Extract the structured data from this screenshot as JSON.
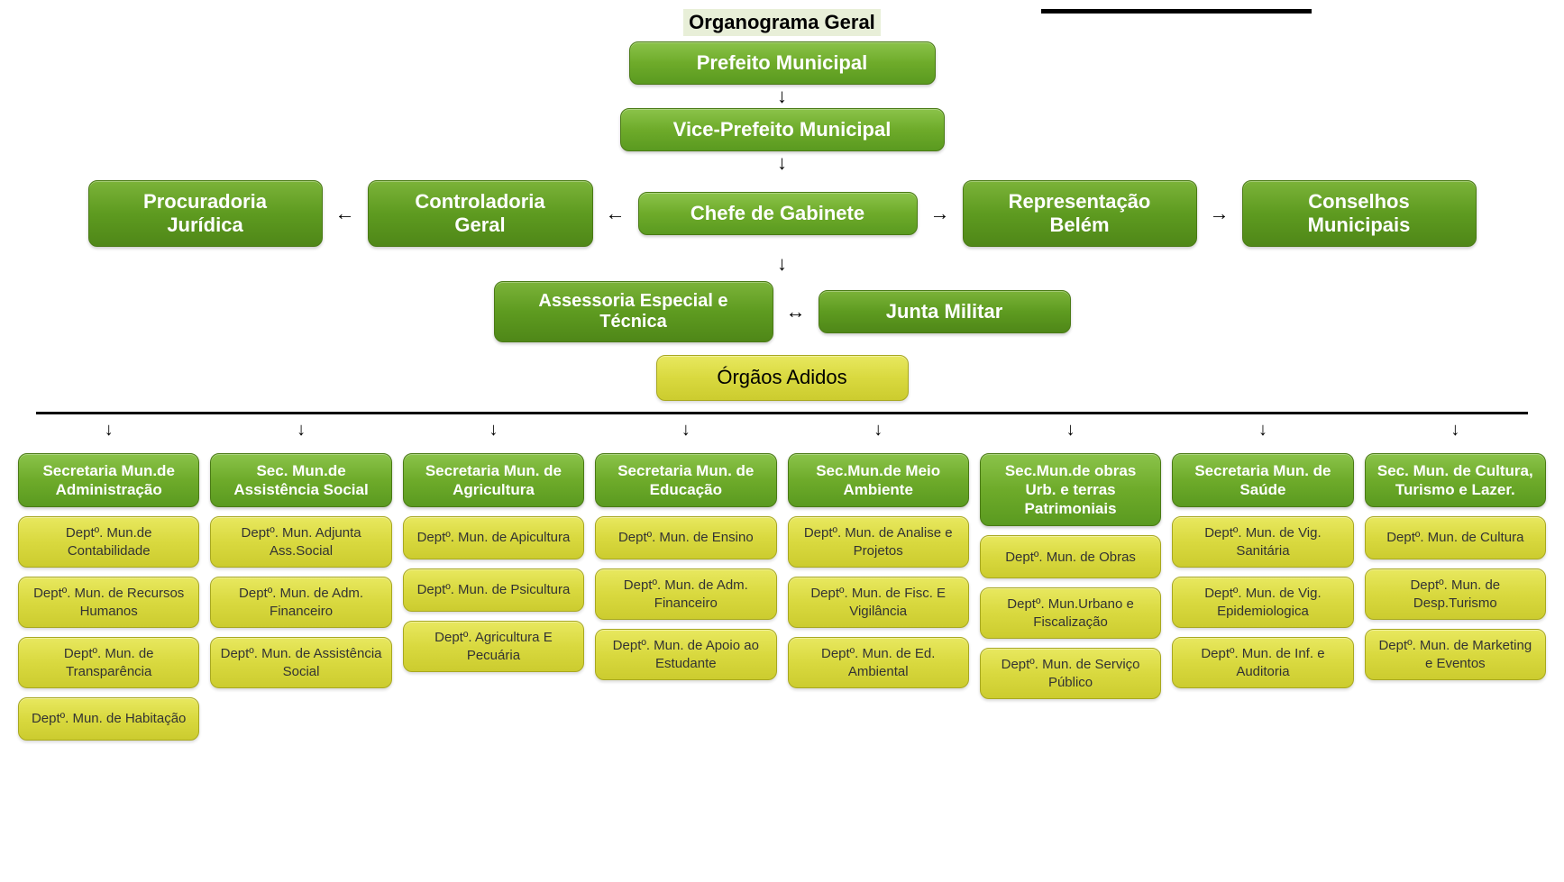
{
  "title": "Organograma Geral",
  "styles": {
    "green_gradient": [
      "#8bc34a",
      "#6eab2a",
      "#5a9a20"
    ],
    "green_border": "#4a7a15",
    "yellow_gradient": [
      "#e8e85f",
      "#d9d93f",
      "#cccc2f"
    ],
    "yellow_border": "#a8a820",
    "title_highlight_bg": "#e8efd8",
    "title_fontsize": 22,
    "box_fontsize": 22,
    "small_box_fontsize": 17,
    "dept_fontsize": 15,
    "green_text_color": "#ffffff",
    "yellow_text_color": "#333333",
    "border_radius": 10,
    "background_color": "#ffffff"
  },
  "top": {
    "prefeito": "Prefeito Municipal",
    "vice": "Vice-Prefeito Municipal",
    "procuradoria": "Procuradoria Jurídica",
    "controladoria": "Controladoria Geral",
    "chefe": "Chefe de Gabinete",
    "representacao": "Representação Belém",
    "conselhos": "Conselhos Municipais",
    "assessoria": "Assessoria Especial e Técnica",
    "junta": "Junta Militar",
    "orgaos": "Órgãos Adidos"
  },
  "arrows": {
    "down": "↓",
    "left": "←",
    "right": "→",
    "both": "↔"
  },
  "secretarias": [
    {
      "head": "Secretaria Mun.de Administração",
      "depts": [
        "Deptº. Mun.de Contabilidade",
        "Deptº. Mun. de Recursos Humanos",
        "Deptº. Mun. de Transparência",
        "Deptº. Mun. de Habitação"
      ]
    },
    {
      "head": "Sec. Mun.de Assistência Social",
      "depts": [
        "Deptº. Mun. Adjunta Ass.Social",
        "Deptº. Mun. de Adm. Financeiro",
        "Deptº. Mun. de Assistência  Social"
      ]
    },
    {
      "head": "Secretaria Mun. de Agricultura",
      "depts": [
        "Deptº. Mun. de Apicultura",
        "Deptº. Mun. de Psicultura",
        "Deptº. Agricultura E Pecuária"
      ]
    },
    {
      "head": "Secretaria Mun. de Educação",
      "depts": [
        "Deptº. Mun. de Ensino",
        "Deptº. Mun. de Adm. Financeiro",
        "Deptº. Mun. de Apoio ao Estudante"
      ]
    },
    {
      "head": "Sec.Mun.de    Meio Ambiente",
      "depts": [
        "Deptº. Mun. de Analise e Projetos",
        "Deptº. Mun. de Fisc. E Vigilância",
        "Deptº. Mun. de Ed. Ambiental"
      ]
    },
    {
      "head": "Sec.Mun.de obras Urb. e terras Patrimoniais",
      "depts": [
        "Deptº. Mun. de Obras",
        "Deptº. Mun.Urbano e Fiscalização",
        "Deptº. Mun. de Serviço Público"
      ]
    },
    {
      "head": "Secretaria Mun. de Saúde",
      "depts": [
        "Deptº. Mun. de Vig. Sanitária",
        "Deptº. Mun. de  Vig. Epidemiologica",
        "Deptº. Mun. de Inf. e Auditoria"
      ]
    },
    {
      "head": "Sec. Mun. de Cultura, Turismo e Lazer.",
      "depts": [
        "Deptº. Mun. de Cultura",
        "Deptº. Mun. de Desp.Turismo",
        "Deptº. Mun. de Marketing e Eventos"
      ]
    }
  ]
}
